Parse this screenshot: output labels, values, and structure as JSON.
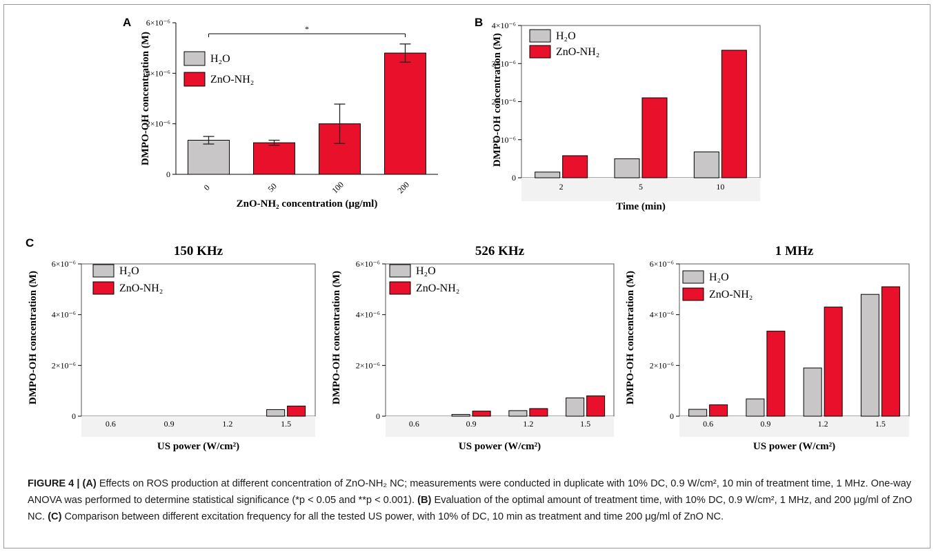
{
  "chart_data": [
    {
      "panel": "A",
      "type": "bar",
      "title": "",
      "ylabel": "DMPO-OH concentration (M)",
      "xlabel": "ZnO-NH₂ concentration (μg/ml)",
      "ylim": [
        0,
        6e-06
      ],
      "yticks": [
        {
          "v": 0,
          "label": "0"
        },
        {
          "v": 2e-06,
          "label": "2×10⁻⁶"
        },
        {
          "v": 4e-06,
          "label": "4×10⁻⁶"
        },
        {
          "v": 6e-06,
          "label": "6×10⁻⁶"
        }
      ],
      "categories": [
        "0",
        "50",
        "100",
        "200"
      ],
      "bars": [
        {
          "series": "H₂O",
          "value": 1.35e-06,
          "err": 1.5e-07
        },
        {
          "series": "ZnO-NH₂",
          "value": 1.25e-06,
          "err": 1e-07
        },
        {
          "series": "ZnO-NH₂",
          "value": 2e-06,
          "err": 7.8e-07
        },
        {
          "series": "ZnO-NH₂",
          "value": 4.8e-06,
          "err": 3.6e-07
        }
      ],
      "significance": {
        "from": "0",
        "to": "200",
        "label": "*"
      },
      "legend": [
        "H₂O",
        "ZnO-NH₂"
      ],
      "legend_position": "top-left"
    },
    {
      "panel": "B",
      "type": "bar",
      "title": "",
      "ylabel": "DMPO-OH concentration (M)",
      "xlabel": "Time (min)",
      "ylim": [
        0,
        4e-06
      ],
      "yticks": [
        {
          "v": 0,
          "label": "0"
        },
        {
          "v": 1e-06,
          "label": "1×10⁻⁶"
        },
        {
          "v": 2e-06,
          "label": "2×10⁻⁶"
        },
        {
          "v": 3e-06,
          "label": "3×10⁻⁶"
        },
        {
          "v": 4e-06,
          "label": "4×10⁻⁶"
        }
      ],
      "categories": [
        "2",
        "5",
        "10"
      ],
      "series": [
        {
          "name": "H₂O",
          "values": [
            1.5e-07,
            5e-07,
            6.8e-07
          ]
        },
        {
          "name": "ZnO-NH₂",
          "values": [
            5.8e-07,
            2.1e-06,
            3.35e-06
          ]
        }
      ],
      "legend_position": "top-left"
    },
    {
      "panel": "C",
      "type": "bar",
      "title": "150 KHz",
      "ylabel": "DMPO-OH concentration (M)",
      "xlabel": "US power (W/cm²)",
      "ylim": [
        0,
        6e-06
      ],
      "yticks": [
        {
          "v": 0,
          "label": "0"
        },
        {
          "v": 2e-06,
          "label": "2×10⁻⁶"
        },
        {
          "v": 4e-06,
          "label": "4×10⁻⁶"
        },
        {
          "v": 6e-06,
          "label": "6×10⁻⁶"
        }
      ],
      "categories": [
        "0.6",
        "0.9",
        "1.2",
        "1.5"
      ],
      "series": [
        {
          "name": "H₂O",
          "values": [
            0,
            0,
            0,
            2.6e-07
          ]
        },
        {
          "name": "ZnO-NH₂",
          "values": [
            0,
            0,
            0,
            4e-07
          ]
        }
      ],
      "legend_position": "top-left"
    },
    {
      "panel": "",
      "type": "bar",
      "title": "526 KHz",
      "ylabel": "DMPO-OH concentration (M)",
      "xlabel": "US power (W/cm²)",
      "ylim": [
        0,
        6e-06
      ],
      "yticks": [
        {
          "v": 0,
          "label": "0"
        },
        {
          "v": 2e-06,
          "label": "2×10⁻⁶"
        },
        {
          "v": 4e-06,
          "label": "4×10⁻⁶"
        },
        {
          "v": 6e-06,
          "label": "6×10⁻⁶"
        }
      ],
      "categories": [
        "0.6",
        "0.9",
        "1.2",
        "1.5"
      ],
      "series": [
        {
          "name": "H₂O",
          "values": [
            0,
            7e-08,
            2.2e-07,
            7.2e-07
          ]
        },
        {
          "name": "ZnO-NH₂",
          "values": [
            0,
            2e-07,
            3e-07,
            8e-07
          ]
        }
      ],
      "legend_position": "top-left"
    },
    {
      "panel": "",
      "type": "bar",
      "title": "1 MHz",
      "ylabel": "DMPO-OH concentration (M)",
      "xlabel": "US power (W/cm²)",
      "ylim": [
        0,
        6e-06
      ],
      "yticks": [
        {
          "v": 0,
          "label": "0"
        },
        {
          "v": 2e-06,
          "label": "2×10⁻⁶"
        },
        {
          "v": 4e-06,
          "label": "4×10⁻⁶"
        },
        {
          "v": 6e-06,
          "label": "6×10⁻⁶"
        }
      ],
      "categories": [
        "0.6",
        "0.9",
        "1.2",
        "1.5"
      ],
      "series": [
        {
          "name": "H₂O",
          "values": [
            2.7e-07,
            6.8e-07,
            1.9e-06,
            4.8e-06
          ]
        },
        {
          "name": "ZnO-NH₂",
          "values": [
            4.5e-07,
            3.35e-06,
            4.3e-06,
            5.1e-06
          ]
        }
      ],
      "legend_position": "top-left"
    }
  ],
  "colors": {
    "h2o": "#c8c6c6",
    "zno": "#e8102a",
    "error": "#222222"
  },
  "caption": [
    {
      "t": "FIGURE 4 | (A)",
      "b": true
    },
    {
      "t": " Effects on ROS production at different concentration of ZnO-NH₂ NC; measurements were conducted in duplicate with 10% DC, 0.9 W/cm², 10 min of treatment time, 1 MHz. One-way ANOVA was performed to determine statistical significance (*p < 0.05 and **p < 0.001). ",
      "b": false
    },
    {
      "t": "(B)",
      "b": true
    },
    {
      "t": " Evaluation of the optimal amount of treatment time, with 10% DC, 0.9 W/cm², 1 MHz, and 200 μg/ml of ZnO NC. ",
      "b": false
    },
    {
      "t": "(C)",
      "b": true
    },
    {
      "t": " Comparison between different excitation frequency for all the tested US power, with 10% of DC, 10 min as treatment and time 200 μg/ml of ZnO NC.",
      "b": false
    }
  ]
}
